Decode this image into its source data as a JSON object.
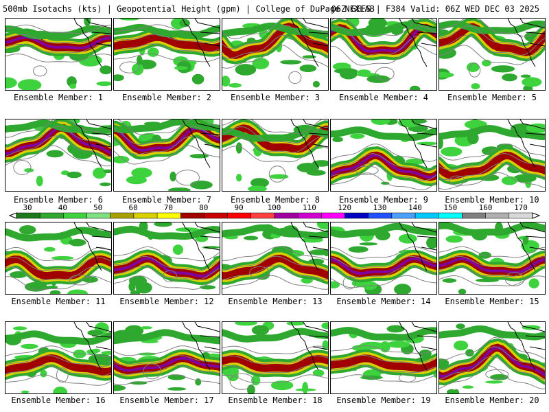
{
  "header": {
    "title_left": "500mb Isotachs (kts) | Geopotential Height (gpm) | College of DuPage NEXLAB",
    "title_right": "06Z GEFS | F384 Valid: 06Z WED DEC 03 2025"
  },
  "members": [
    {
      "label": "Ensemble Member: 1"
    },
    {
      "label": "Ensemble Member: 2"
    },
    {
      "label": "Ensemble Member: 3"
    },
    {
      "label": "Ensemble Member: 4"
    },
    {
      "label": "Ensemble Member: 5"
    },
    {
      "label": "Ensemble Member: 6"
    },
    {
      "label": "Ensemble Member: 7"
    },
    {
      "label": "Ensemble Member: 8"
    },
    {
      "label": "Ensemble Member: 9"
    },
    {
      "label": "Ensemble Member: 10"
    },
    {
      "label": "Ensemble Member: 11"
    },
    {
      "label": "Ensemble Member: 12"
    },
    {
      "label": "Ensemble Member: 13"
    },
    {
      "label": "Ensemble Member: 14"
    },
    {
      "label": "Ensemble Member: 15"
    },
    {
      "label": "Ensemble Member: 16"
    },
    {
      "label": "Ensemble Member: 17"
    },
    {
      "label": "Ensemble Member: 18"
    },
    {
      "label": "Ensemble Member: 19"
    },
    {
      "label": "Ensemble Member: 20"
    }
  ],
  "colorbar": {
    "labels": [
      "30",
      "40",
      "50",
      "60",
      "70",
      "80",
      "90",
      "100",
      "110",
      "120",
      "130",
      "140",
      "150",
      "160",
      "170"
    ],
    "colors": [
      "#1c7a1c",
      "#2ea82e",
      "#3fd23f",
      "#7fe07f",
      "#a8a000",
      "#d8d000",
      "#ffff00",
      "#a00000",
      "#c80000",
      "#ff0000",
      "#ff4040",
      "#a000a0",
      "#d000d0",
      "#ff00ff",
      "#0000c0",
      "#2050ff",
      "#4aa0ff",
      "#00c8ff",
      "#00ffff",
      "#808080",
      "#b0b0b0",
      "#d8d8d8"
    ]
  },
  "legend_colors": {
    "weak": "#2ea82e",
    "moderate": "#d8d000",
    "strong": "#a00000",
    "core": "#8000a0",
    "height_contour": "#808080",
    "coast": "#000000"
  }
}
